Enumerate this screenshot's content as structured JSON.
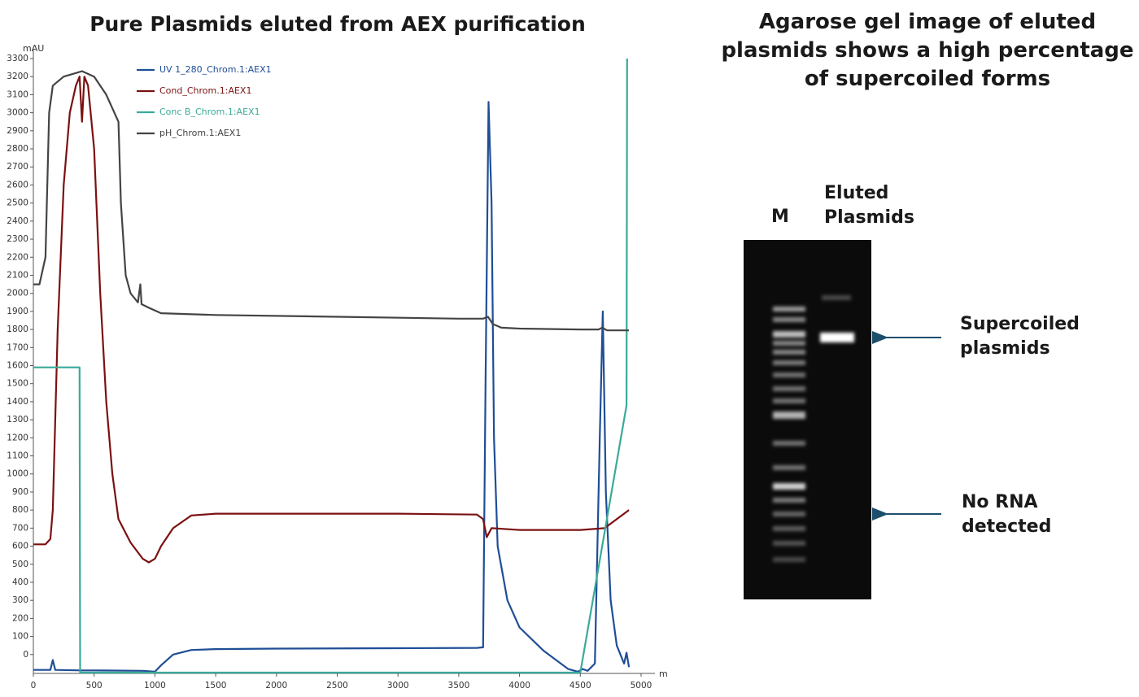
{
  "chart_data": {
    "type": "line",
    "title": "Pure Plasmids eluted from AEX purification",
    "y_label": "mAU",
    "x_label": "ml",
    "xlim": [
      0,
      5000
    ],
    "ylim": [
      -100,
      3300
    ],
    "xticks": [
      0,
      500,
      1000,
      1500,
      2000,
      2500,
      3000,
      3500,
      4000,
      4500,
      5000
    ],
    "yticks": [
      0,
      100,
      200,
      300,
      400,
      500,
      600,
      700,
      800,
      900,
      1000,
      1100,
      1200,
      1300,
      1400,
      1500,
      1600,
      1700,
      1800,
      1900,
      2000,
      2100,
      2200,
      2300,
      2400,
      2500,
      2600,
      2700,
      2800,
      2900,
      3000,
      3100,
      3200,
      3300
    ],
    "series": [
      {
        "name": "UV 1_280_Chrom.1:AEX1",
        "color": "#1f4e96",
        "x": [
          0,
          140,
          160,
          180,
          400,
          500,
          900,
          1000,
          1050,
          1150,
          1300,
          1500,
          2000,
          3000,
          3650,
          3700,
          3720,
          3745,
          3770,
          3790,
          3820,
          3900,
          4000,
          4200,
          4400,
          4480,
          4520,
          4560,
          4620,
          4660,
          4685,
          4710,
          4750,
          4800,
          4860,
          4880,
          4900
        ],
        "values": [
          -85,
          -85,
          -30,
          -85,
          -88,
          -88,
          -90,
          -95,
          -60,
          0,
          25,
          30,
          33,
          35,
          37,
          40,
          1500,
          3060,
          2500,
          1200,
          600,
          300,
          150,
          20,
          -80,
          -95,
          -80,
          -90,
          -50,
          1200,
          1900,
          900,
          300,
          50,
          -50,
          10,
          -70
        ]
      },
      {
        "name": "Cond_Chrom.1:AEX1",
        "color": "#7b1111",
        "x": [
          0,
          100,
          140,
          160,
          200,
          250,
          300,
          350,
          380,
          400,
          420,
          450,
          500,
          550,
          600,
          650,
          700,
          800,
          900,
          950,
          1000,
          1050,
          1150,
          1300,
          1500,
          2000,
          3000,
          3650,
          3700,
          3730,
          3770,
          4000,
          4500,
          4700,
          4900
        ],
        "values": [
          610,
          610,
          640,
          800,
          1800,
          2600,
          3000,
          3150,
          3200,
          2950,
          3200,
          3150,
          2800,
          2000,
          1400,
          1000,
          750,
          620,
          530,
          510,
          530,
          600,
          700,
          770,
          780,
          780,
          780,
          775,
          750,
          650,
          700,
          690,
          690,
          700,
          800
        ]
      },
      {
        "name": "Conc B_Chrom.1:AEX1",
        "color": "#3aaa9a",
        "x": [
          0,
          380,
          385,
          4500,
          4880,
          4885
        ],
        "values": [
          1590,
          1590,
          -100,
          -100,
          1380,
          3300
        ]
      },
      {
        "name": "pH_Chrom.1:AEX1",
        "color": "#444444",
        "x": [
          0,
          50,
          100,
          130,
          160,
          250,
          350,
          400,
          500,
          600,
          700,
          720,
          760,
          800,
          860,
          880,
          890,
          950,
          1050,
          1500,
          2500,
          3500,
          3700,
          3740,
          3780,
          3850,
          4000,
          4500,
          4650,
          4680,
          4720,
          4900
        ],
        "values": [
          2050,
          2050,
          2200,
          3000,
          3150,
          3200,
          3220,
          3230,
          3200,
          3100,
          2950,
          2500,
          2100,
          2000,
          1950,
          2050,
          1940,
          1920,
          1890,
          1880,
          1870,
          1860,
          1860,
          1870,
          1830,
          1810,
          1805,
          1800,
          1800,
          1810,
          1795,
          1795
        ]
      }
    ]
  },
  "panel": {
    "title": "Agarose gel image of eluted plasmids shows a high percentage of supercoiled forms",
    "lane_labels": [
      "M",
      "Eluted Plasmids"
    ],
    "annotations": [
      "Supercoiled plasmids",
      "No RNA detected"
    ]
  }
}
